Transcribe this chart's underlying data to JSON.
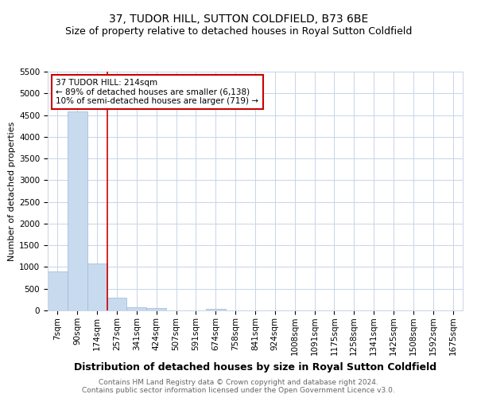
{
  "title": "37, TUDOR HILL, SUTTON COLDFIELD, B73 6BE",
  "subtitle": "Size of property relative to detached houses in Royal Sutton Coldfield",
  "xlabel": "Distribution of detached houses by size in Royal Sutton Coldfield",
  "ylabel": "Number of detached properties",
  "footer_line1": "Contains HM Land Registry data © Crown copyright and database right 2024.",
  "footer_line2": "Contains public sector information licensed under the Open Government Licence v3.0.",
  "annotation_line1": "37 TUDOR HILL: 214sqm",
  "annotation_line2": "← 89% of detached houses are smaller (6,138)",
  "annotation_line3": "10% of semi-detached houses are larger (719) →",
  "red_line_index": 2.5,
  "categories": [
    "7sqm",
    "90sqm",
    "174sqm",
    "257sqm",
    "341sqm",
    "424sqm",
    "507sqm",
    "591sqm",
    "674sqm",
    "758sqm",
    "841sqm",
    "924sqm",
    "1008sqm",
    "1091sqm",
    "1175sqm",
    "1258sqm",
    "1341sqm",
    "1425sqm",
    "1508sqm",
    "1592sqm",
    "1675sqm"
  ],
  "values": [
    900,
    4575,
    1075,
    300,
    80,
    55,
    0,
    0,
    40,
    0,
    0,
    0,
    0,
    0,
    0,
    0,
    0,
    0,
    0,
    0,
    0
  ],
  "bar_color": "#c8daed",
  "bar_edge_color": "#9ab8d8",
  "red_line_color": "#cc0000",
  "ylim": [
    0,
    5500
  ],
  "yticks": [
    0,
    500,
    1000,
    1500,
    2000,
    2500,
    3000,
    3500,
    4000,
    4500,
    5000,
    5500
  ],
  "bg_color": "#ffffff",
  "grid_color": "#c8d4e8",
  "annotation_box_edge": "#cc0000",
  "title_fontsize": 10,
  "subtitle_fontsize": 9,
  "ylabel_fontsize": 8,
  "xlabel_fontsize": 9,
  "footer_fontsize": 6.5,
  "tick_fontsize": 7.5
}
